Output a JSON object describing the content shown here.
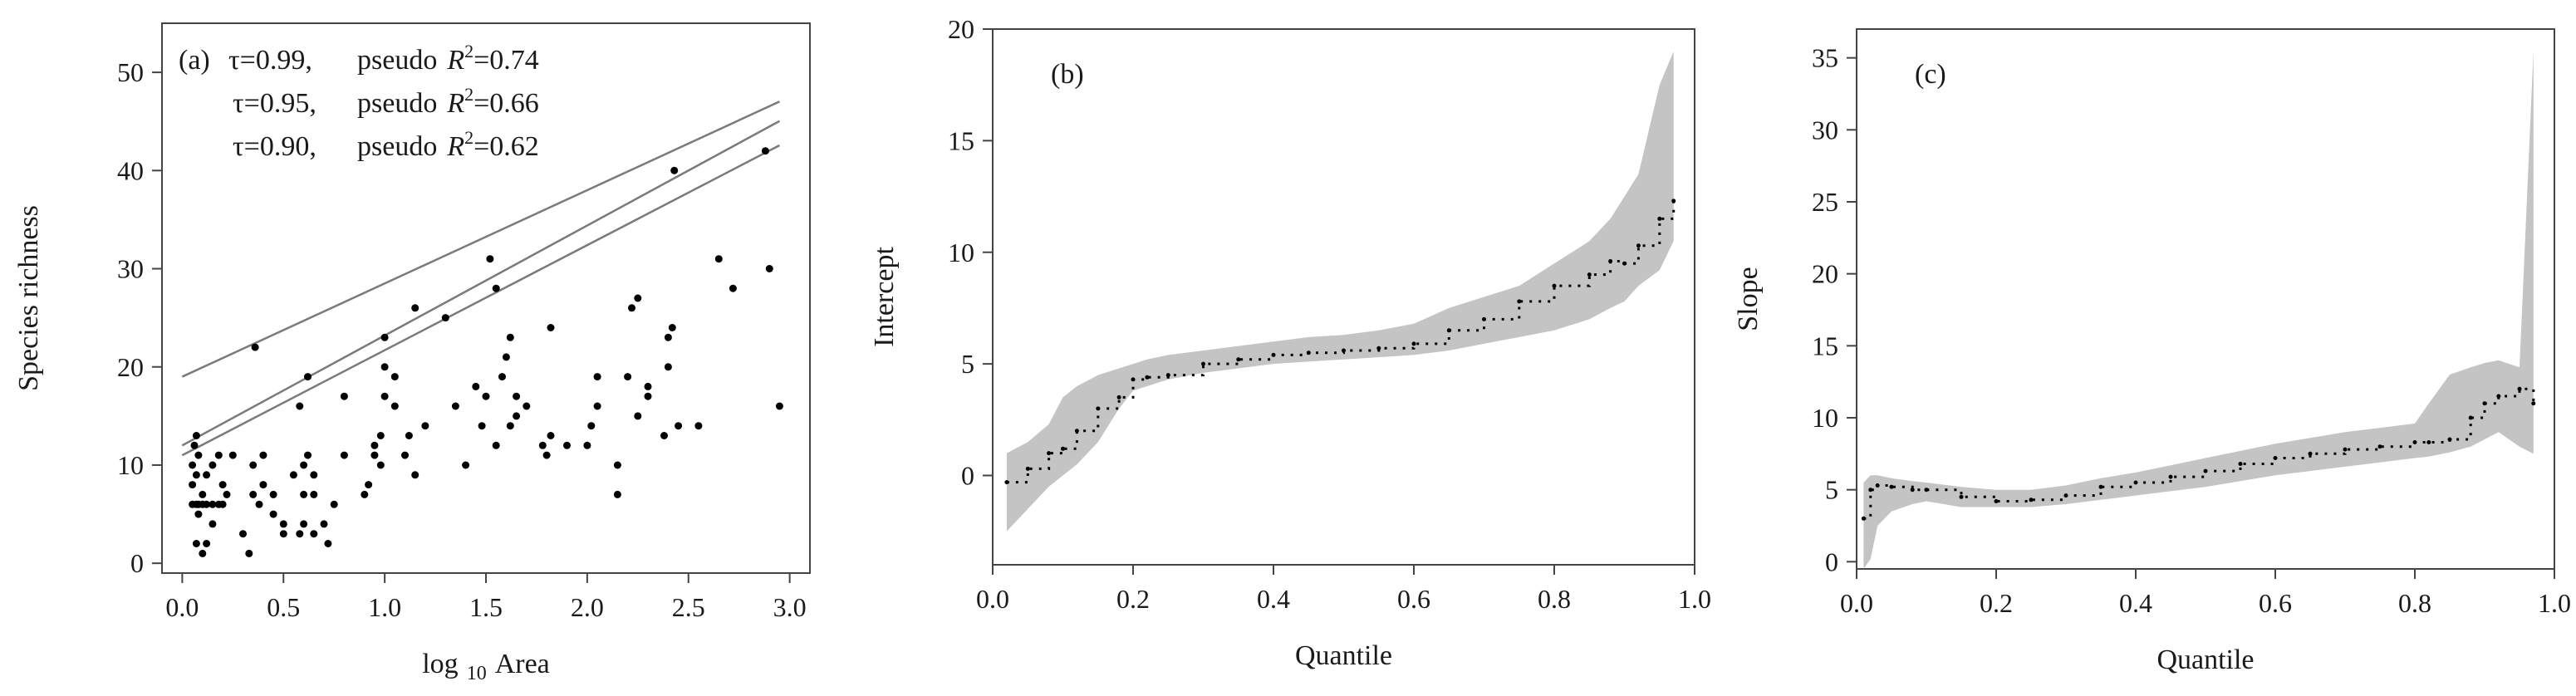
{
  "figure": {
    "colors": {
      "band": "#c4c4c4",
      "points": "#000000",
      "lines": "#7a7a7a",
      "axis": "#444444",
      "text": "#1a1a1a"
    }
  },
  "chart_data": [
    {
      "type": "scatter",
      "panel_label": "(a)",
      "xlabel_main": "log",
      "xlabel_sub": "10",
      "xlabel_rest": "Area",
      "ylabel": "Species richness",
      "xlim": [
        -0.1,
        3.1
      ],
      "ylim": [
        -1,
        55
      ],
      "xticks": [
        "0.0",
        "0.5",
        "1.0",
        "1.5",
        "2.0",
        "2.5",
        "3.0"
      ],
      "yticks": [
        "0",
        "10",
        "20",
        "30",
        "40",
        "50"
      ],
      "annotations": [
        {
          "tau": "τ=0.99,",
          "r2_prefix": "pseudo",
          "r2_var": "R",
          "r2_sup": "2",
          "r2_value": "=0.74"
        },
        {
          "tau": "τ=0.95,",
          "r2_prefix": "pseudo",
          "r2_var": "R",
          "r2_sup": "2",
          "r2_value": "=0.66"
        },
        {
          "tau": "τ=0.90,",
          "r2_prefix": "pseudo",
          "r2_var": "R",
          "r2_sup": "2",
          "r2_value": "=0.62"
        }
      ],
      "lines": [
        {
          "tau": 0.99,
          "intercept": 19.0,
          "slope": 9.5,
          "x_range": [
            0.0,
            2.95
          ]
        },
        {
          "tau": 0.95,
          "intercept": 12.0,
          "slope": 11.2,
          "x_range": [
            0.0,
            2.95
          ]
        },
        {
          "tau": 0.9,
          "intercept": 11.0,
          "slope": 10.7,
          "x_range": [
            0.0,
            2.95
          ]
        }
      ],
      "points": [
        [
          0.05,
          6
        ],
        [
          0.07,
          6
        ],
        [
          0.08,
          6
        ],
        [
          0.1,
          6
        ],
        [
          0.12,
          6
        ],
        [
          0.15,
          6
        ],
        [
          0.18,
          6
        ],
        [
          0.05,
          8
        ],
        [
          0.07,
          9
        ],
        [
          0.05,
          10
        ],
        [
          0.08,
          11
        ],
        [
          0.06,
          12
        ],
        [
          0.07,
          13
        ],
        [
          0.1,
          7
        ],
        [
          0.12,
          9
        ],
        [
          0.15,
          10
        ],
        [
          0.18,
          11
        ],
        [
          0.2,
          8
        ],
        [
          0.22,
          7
        ],
        [
          0.25,
          11
        ],
        [
          0.07,
          2
        ],
        [
          0.1,
          1
        ],
        [
          0.12,
          2
        ],
        [
          0.08,
          5
        ],
        [
          0.15,
          4
        ],
        [
          0.2,
          6
        ],
        [
          0.3,
          3
        ],
        [
          0.33,
          1
        ],
        [
          0.35,
          7
        ],
        [
          0.35,
          10
        ],
        [
          0.38,
          6
        ],
        [
          0.4,
          8
        ],
        [
          0.4,
          11
        ],
        [
          0.45,
          7
        ],
        [
          0.45,
          5
        ],
        [
          0.5,
          3
        ],
        [
          0.5,
          4
        ],
        [
          0.55,
          9
        ],
        [
          0.58,
          3
        ],
        [
          0.6,
          4
        ],
        [
          0.6,
          7
        ],
        [
          0.6,
          10
        ],
        [
          0.62,
          11
        ],
        [
          0.65,
          3
        ],
        [
          0.65,
          9
        ],
        [
          0.7,
          4
        ],
        [
          0.72,
          2
        ],
        [
          0.65,
          7
        ],
        [
          0.75,
          6
        ],
        [
          0.8,
          11
        ],
        [
          0.36,
          22
        ],
        [
          0.58,
          16
        ],
        [
          0.62,
          19
        ],
        [
          0.8,
          17
        ],
        [
          0.9,
          7
        ],
        [
          0.92,
          8
        ],
        [
          0.95,
          11
        ],
        [
          0.95,
          12
        ],
        [
          0.98,
          10
        ],
        [
          0.98,
          13
        ],
        [
          1.0,
          17
        ],
        [
          1.0,
          20
        ],
        [
          1.0,
          23
        ],
        [
          1.05,
          19
        ],
        [
          1.05,
          16
        ],
        [
          1.1,
          11
        ],
        [
          1.12,
          13
        ],
        [
          1.15,
          9
        ],
        [
          1.15,
          26
        ],
        [
          1.2,
          14
        ],
        [
          1.3,
          25
        ],
        [
          1.35,
          16
        ],
        [
          1.4,
          10
        ],
        [
          1.45,
          18
        ],
        [
          1.48,
          14
        ],
        [
          1.5,
          17
        ],
        [
          1.52,
          31
        ],
        [
          1.55,
          28
        ],
        [
          1.55,
          12
        ],
        [
          1.58,
          19
        ],
        [
          1.6,
          21
        ],
        [
          1.62,
          23
        ],
        [
          1.62,
          14
        ],
        [
          1.65,
          15
        ],
        [
          1.7,
          16
        ],
        [
          1.78,
          12
        ],
        [
          1.8,
          11
        ],
        [
          1.82,
          13
        ],
        [
          1.82,
          24
        ],
        [
          1.9,
          12
        ],
        [
          2.0,
          12
        ],
        [
          2.02,
          14
        ],
        [
          2.05,
          16
        ],
        [
          2.05,
          19
        ],
        [
          2.15,
          7
        ],
        [
          2.2,
          19
        ],
        [
          2.22,
          26
        ],
        [
          2.25,
          27
        ],
        [
          2.25,
          15
        ],
        [
          2.3,
          17
        ],
        [
          2.3,
          18
        ],
        [
          2.38,
          13
        ],
        [
          2.4,
          20
        ],
        [
          2.4,
          23
        ],
        [
          2.42,
          24
        ],
        [
          2.45,
          14
        ],
        [
          2.55,
          14
        ],
        [
          2.65,
          31
        ],
        [
          2.72,
          28
        ],
        [
          2.9,
          30
        ],
        [
          2.95,
          16
        ],
        [
          2.43,
          40
        ],
        [
          2.88,
          42
        ],
        [
          2.15,
          10
        ],
        [
          1.65,
          17
        ]
      ]
    },
    {
      "type": "line",
      "panel_label": "(b)",
      "xlabel": "Quantile",
      "ylabel": "Intercept",
      "xlim": [
        0,
        1
      ],
      "ylim": [
        -4,
        20
      ],
      "xticks": [
        "0.0",
        "0.2",
        "0.4",
        "0.6",
        "0.8",
        "1.0"
      ],
      "yticks": [
        "0",
        "5",
        "10",
        "15",
        "20"
      ],
      "quantile": [
        0.02,
        0.05,
        0.08,
        0.1,
        0.12,
        0.15,
        0.18,
        0.2,
        0.22,
        0.25,
        0.3,
        0.35,
        0.4,
        0.45,
        0.5,
        0.55,
        0.6,
        0.65,
        0.7,
        0.75,
        0.8,
        0.85,
        0.88,
        0.9,
        0.92,
        0.95,
        0.97
      ],
      "estimate": [
        -0.3,
        0.3,
        1.0,
        1.2,
        2.0,
        3.0,
        3.5,
        4.3,
        4.4,
        4.5,
        5.0,
        5.2,
        5.4,
        5.5,
        5.6,
        5.7,
        5.9,
        6.5,
        7.0,
        7.8,
        8.5,
        9.0,
        9.6,
        9.5,
        10.3,
        11.5,
        12.3
      ],
      "lower": [
        -2.5,
        -1.5,
        -0.5,
        0.0,
        0.5,
        1.5,
        3.0,
        3.8,
        4.0,
        4.3,
        4.6,
        4.8,
        5.0,
        5.1,
        5.2,
        5.3,
        5.4,
        5.6,
        5.9,
        6.2,
        6.5,
        7.0,
        7.5,
        7.8,
        8.5,
        9.2,
        10.5
      ],
      "upper": [
        1.0,
        1.5,
        2.3,
        3.5,
        4.0,
        4.5,
        4.8,
        5.0,
        5.2,
        5.4,
        5.6,
        5.8,
        6.0,
        6.2,
        6.3,
        6.5,
        6.8,
        7.5,
        8.0,
        8.5,
        9.5,
        10.5,
        11.5,
        12.5,
        13.5,
        17.5,
        19.0
      ]
    },
    {
      "type": "line",
      "panel_label": "(c)",
      "xlabel": "Quantile",
      "ylabel": "Slope",
      "xlim": [
        0,
        1
      ],
      "ylim": [
        -0.5,
        37
      ],
      "xticks": [
        "0.0",
        "0.2",
        "0.4",
        "0.6",
        "0.8",
        "1.0"
      ],
      "yticks": [
        "0",
        "5",
        "10",
        "15",
        "20",
        "25",
        "30",
        "35"
      ],
      "quantile": [
        0.01,
        0.02,
        0.03,
        0.05,
        0.08,
        0.1,
        0.15,
        0.2,
        0.25,
        0.3,
        0.35,
        0.4,
        0.45,
        0.5,
        0.55,
        0.6,
        0.65,
        0.7,
        0.75,
        0.8,
        0.82,
        0.85,
        0.88,
        0.9,
        0.92,
        0.95,
        0.97
      ],
      "estimate": [
        3.0,
        5.0,
        5.3,
        5.2,
        5.0,
        5.0,
        4.5,
        4.2,
        4.3,
        4.6,
        5.2,
        5.5,
        5.9,
        6.3,
        6.8,
        7.2,
        7.5,
        7.8,
        8.0,
        8.3,
        8.3,
        8.5,
        10.0,
        11.0,
        11.5,
        12.0,
        11.0
      ],
      "lower": [
        -0.5,
        0.2,
        2.5,
        3.5,
        4.0,
        4.2,
        3.8,
        3.8,
        3.8,
        4.0,
        4.3,
        4.6,
        4.9,
        5.2,
        5.6,
        6.0,
        6.3,
        6.6,
        6.9,
        7.2,
        7.3,
        7.6,
        8.0,
        8.5,
        9.0,
        8.0,
        7.5
      ],
      "upper": [
        5.5,
        6.0,
        6.0,
        5.8,
        5.6,
        5.5,
        5.2,
        5.0,
        5.0,
        5.3,
        5.8,
        6.2,
        6.7,
        7.2,
        7.7,
        8.2,
        8.6,
        9.0,
        9.3,
        9.6,
        11.0,
        13.0,
        13.5,
        13.8,
        14.0,
        13.5,
        35.5
      ]
    }
  ]
}
